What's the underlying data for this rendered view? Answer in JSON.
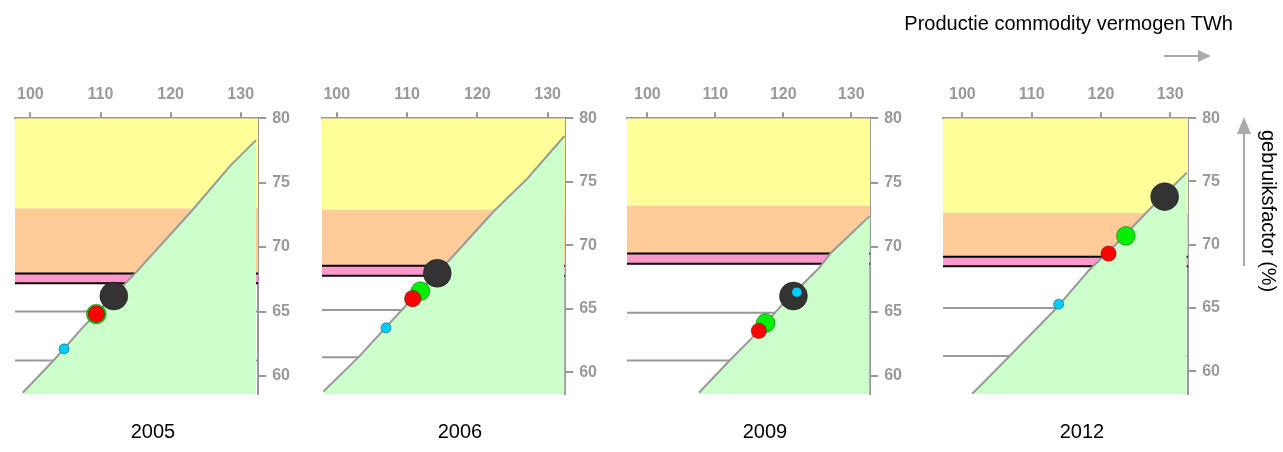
{
  "chart_data": [
    {
      "type": "bubble",
      "title": "2005",
      "xlim": [
        97.8,
        132.5
      ],
      "ylim": [
        58.6,
        80
      ],
      "xticks": [
        100,
        110,
        120,
        130
      ],
      "yticks": [
        60,
        65,
        70,
        75,
        80
      ],
      "bands": [
        {
          "axis": "y",
          "from": 73,
          "to": 80,
          "color": "#ffff99"
        },
        {
          "axis": "y",
          "from": 67.95,
          "to": 73,
          "color": "#ffcc99"
        },
        {
          "axis": "y",
          "from": 67.2,
          "to": 67.95,
          "color": "#ff99cc"
        }
      ],
      "ref_lines": [
        {
          "axis": "y",
          "value": 67.95,
          "color": "#000000"
        },
        {
          "axis": "y",
          "value": 67.2,
          "color": "#000000"
        },
        {
          "axis": "y",
          "value": 65,
          "color": "#999999"
        },
        {
          "axis": "y",
          "value": 61.2,
          "color": "#999999"
        }
      ],
      "series": [
        {
          "type": "area",
          "color": "#ccffcc",
          "x": [
            98.9,
            103.3,
            107.7,
            110.2,
            115,
            123,
            128.5,
            132.2
          ],
          "values": [
            58.7,
            61.2,
            63.9,
            65.3,
            68,
            72.8,
            76.3,
            78.3
          ]
        },
        {
          "type": "bubble",
          "color": "#333333",
          "x": [
            111.9
          ],
          "values": [
            66.2
          ],
          "sizes": [
            1
          ]
        },
        {
          "type": "bubble",
          "color": "#00ee00",
          "x": [
            109.4
          ],
          "values": [
            64.8
          ],
          "sizes": [
            0.5
          ]
        },
        {
          "type": "bubble",
          "color": "#ff0000",
          "x": [
            109.4
          ],
          "values": [
            64.8
          ],
          "sizes": [
            0.35
          ]
        },
        {
          "type": "bubble",
          "color": "#00ccff",
          "x": [
            104.8
          ],
          "values": [
            62.1
          ],
          "sizes": [
            0.13
          ]
        }
      ]
    },
    {
      "type": "bubble",
      "title": "2006",
      "xlim": [
        97.9,
        132.5
      ],
      "ylim": [
        58.3,
        80
      ],
      "xticks": [
        100,
        110,
        120,
        130
      ],
      "yticks": [
        60,
        65,
        70,
        75,
        80
      ],
      "bands": [
        {
          "axis": "y",
          "from": 72.8,
          "to": 80,
          "color": "#ffff99"
        },
        {
          "axis": "y",
          "from": 68.4,
          "to": 72.8,
          "color": "#ffcc99"
        },
        {
          "axis": "y",
          "from": 67.6,
          "to": 68.4,
          "color": "#ff99cc"
        }
      ],
      "ref_lines": [
        {
          "axis": "y",
          "value": 68.4,
          "color": "#000000"
        },
        {
          "axis": "y",
          "value": 67.6,
          "color": "#000000"
        },
        {
          "axis": "y",
          "value": 64.9,
          "color": "#999999"
        },
        {
          "axis": "y",
          "value": 61.2,
          "color": "#999999"
        }
      ],
      "series": [
        {
          "type": "area",
          "color": "#ccffcc",
          "x": [
            98.1,
            103.1,
            109.9,
            116.3,
            122.2,
            127.2,
            132.4
          ],
          "values": [
            58.5,
            61.2,
            65.3,
            69,
            72.6,
            75.3,
            78.6
          ]
        },
        {
          "type": "bubble",
          "color": "#333333",
          "x": [
            114.3
          ],
          "values": [
            67.8
          ],
          "sizes": [
            1
          ]
        },
        {
          "type": "bubble",
          "color": "#00ee00",
          "x": [
            111.9
          ],
          "values": [
            66.4
          ],
          "sizes": [
            0.45
          ]
        },
        {
          "type": "bubble",
          "color": "#ff0000",
          "x": [
            110.8
          ],
          "values": [
            65.8
          ],
          "sizes": [
            0.35
          ]
        },
        {
          "type": "bubble",
          "color": "#00ccff",
          "x": [
            107
          ],
          "values": [
            63.5
          ],
          "sizes": [
            0.13
          ]
        }
      ]
    },
    {
      "type": "bubble",
      "title": "2009",
      "xlim": [
        97,
        132.8
      ],
      "ylim": [
        58.6,
        80
      ],
      "xticks": [
        100,
        110,
        120,
        130
      ],
      "yticks": [
        60,
        65,
        70,
        75,
        80
      ],
      "bands": [
        {
          "axis": "y",
          "from": 73.2,
          "to": 80,
          "color": "#ffff99"
        },
        {
          "axis": "y",
          "from": 69.5,
          "to": 73.2,
          "color": "#ffcc99"
        },
        {
          "axis": "y",
          "from": 68.7,
          "to": 69.5,
          "color": "#ff99cc"
        }
      ],
      "ref_lines": [
        {
          "axis": "y",
          "value": 69.5,
          "color": "#000000"
        },
        {
          "axis": "y",
          "value": 68.7,
          "color": "#000000"
        },
        {
          "axis": "y",
          "value": 64.9,
          "color": "#999999"
        },
        {
          "axis": "y",
          "value": 61.2,
          "color": "#999999"
        }
      ],
      "series": [
        {
          "type": "area",
          "color": "#ccffcc",
          "x": [
            107.6,
            112.1,
            115.3,
            119.8,
            125.3,
            127.1,
            129.9,
            132.7
          ],
          "values": [
            58.7,
            61.2,
            62.9,
            65.5,
            68.4,
            69.6,
            71,
            72.4
          ]
        },
        {
          "type": "bubble",
          "color": "#333333",
          "x": [
            121.5
          ],
          "values": [
            66.2
          ],
          "sizes": [
            1
          ]
        },
        {
          "type": "bubble",
          "color": "#00ee00",
          "x": [
            117.4
          ],
          "values": [
            64.1
          ],
          "sizes": [
            0.45
          ]
        },
        {
          "type": "bubble",
          "color": "#ff0000",
          "x": [
            116.4
          ],
          "values": [
            63.5
          ],
          "sizes": [
            0.3
          ]
        },
        {
          "type": "bubble",
          "color": "#00ccff",
          "x": [
            122
          ],
          "values": [
            66.5
          ],
          "sizes": [
            0.13
          ]
        }
      ]
    },
    {
      "type": "bubble",
      "title": "2012",
      "xlabel": "Productie commodity vermogen TWh",
      "ylabel": "gebruiksfactor (%)",
      "xlim": [
        97.2,
        132.6
      ],
      "ylim": [
        58.2,
        80
      ],
      "xticks": [
        100,
        110,
        120,
        130
      ],
      "yticks": [
        60,
        65,
        70,
        75,
        80
      ],
      "bands": [
        {
          "axis": "y",
          "from": 72.5,
          "to": 80,
          "color": "#ffff99"
        },
        {
          "axis": "y",
          "from": 69.05,
          "to": 72.5,
          "color": "#ffcc99"
        },
        {
          "axis": "y",
          "from": 68.3,
          "to": 69.05,
          "color": "#ff99cc"
        }
      ],
      "ref_lines": [
        {
          "axis": "y",
          "value": 69.05,
          "color": "#000000"
        },
        {
          "axis": "y",
          "value": 68.3,
          "color": "#000000"
        },
        {
          "axis": "y",
          "value": 65,
          "color": "#999999"
        },
        {
          "axis": "y",
          "value": 61.2,
          "color": "#999999"
        }
      ],
      "series": [
        {
          "type": "area",
          "color": "#ccffcc",
          "x": [
            101.4,
            107,
            113.6,
            118.3,
            122.1,
            127.2,
            132.4
          ],
          "values": [
            58.2,
            61.3,
            65,
            68,
            70,
            72.9,
            75.7
          ]
        },
        {
          "type": "bubble",
          "color": "#333333",
          "x": [
            129.2
          ],
          "values": [
            73.8
          ],
          "sizes": [
            1
          ]
        },
        {
          "type": "bubble",
          "color": "#00ee00",
          "x": [
            123.6
          ],
          "values": [
            70.7
          ],
          "sizes": [
            0.45
          ]
        },
        {
          "type": "bubble",
          "color": "#ff0000",
          "x": [
            121.1
          ],
          "values": [
            69.3
          ],
          "sizes": [
            0.3
          ]
        },
        {
          "type": "bubble",
          "color": "#00ccff",
          "x": [
            113.9
          ],
          "values": [
            65.3
          ],
          "sizes": [
            0.13
          ]
        }
      ]
    }
  ]
}
